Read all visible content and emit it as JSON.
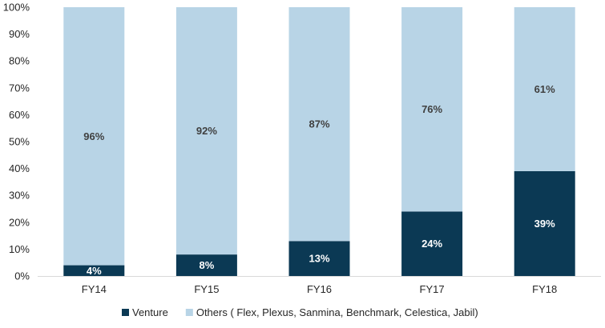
{
  "chart_data": {
    "type": "bar",
    "stacked": true,
    "percent_stacked": true,
    "categories": [
      "FY14",
      "FY15",
      "FY16",
      "FY17",
      "FY18"
    ],
    "series": [
      {
        "name": "Venture",
        "values": [
          4,
          8,
          13,
          24,
          39
        ],
        "labels": [
          "4%",
          "8%",
          "13%",
          "24%",
          "39%"
        ],
        "color": "#0b3954",
        "label_color": "#ffffff"
      },
      {
        "name": "Others ( Flex, Plexus, Sanmina, Benchmark, Celestica, Jabil)",
        "values": [
          96,
          92,
          87,
          76,
          61
        ],
        "labels": [
          "96%",
          "92%",
          "87%",
          "76%",
          "61%"
        ],
        "color": "#b8d4e6",
        "label_color": "#404040"
      }
    ],
    "ylim": [
      0,
      100
    ],
    "yticks": [
      "0%",
      "10%",
      "20%",
      "30%",
      "40%",
      "50%",
      "60%",
      "70%",
      "80%",
      "90%",
      "100%"
    ],
    "title": "",
    "xlabel": "",
    "ylabel": "",
    "grid": false,
    "legend_position": "bottom"
  }
}
